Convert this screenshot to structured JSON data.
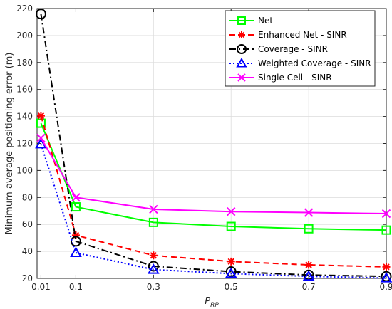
{
  "chart_data": {
    "type": "line",
    "title": "",
    "xlabel_main": "P",
    "xlabel_sub": "RP",
    "ylabel": "Minimum average positioning error (m)",
    "x": [
      0.01,
      0.1,
      0.3,
      0.5,
      0.7,
      0.9
    ],
    "xticks": [
      "0.01",
      "0.1",
      "0.3",
      "0.5",
      "0.7",
      "0.9"
    ],
    "yticks": [
      "20",
      "40",
      "60",
      "80",
      "100",
      "120",
      "140",
      "160",
      "180",
      "200",
      "220"
    ],
    "xlim": [
      0,
      0.9
    ],
    "ylim": [
      20,
      220
    ],
    "grid": true,
    "legend_position": "top-right",
    "series": [
      {
        "name": "Net",
        "color": "#00ff00",
        "dash": "solid",
        "marker": "square",
        "values": [
          135,
          73,
          61.5,
          58.5,
          56.8,
          55.8
        ]
      },
      {
        "name": "Enhanced Net - SINR",
        "color": "#ff0000",
        "dash": "dashed",
        "marker": "asterisk",
        "values": [
          140.5,
          52,
          37,
          32.5,
          30,
          28.5
        ]
      },
      {
        "name": "Coverage - SINR",
        "color": "#000000",
        "dash": "dashdot",
        "marker": "circle",
        "values": [
          216,
          47.5,
          29,
          25,
          22.5,
          21.5
        ]
      },
      {
        "name": "Weighted Coverage - SINR",
        "color": "#0000ff",
        "dash": "dotted",
        "marker": "triangle",
        "values": [
          119.5,
          39,
          26.5,
          23.5,
          21.5,
          20.2
        ]
      },
      {
        "name": "Single Cell - SINR",
        "color": "#ff00ff",
        "dash": "solid",
        "marker": "x",
        "values": [
          124,
          80,
          71.2,
          69.5,
          68.8,
          68
        ]
      }
    ]
  }
}
